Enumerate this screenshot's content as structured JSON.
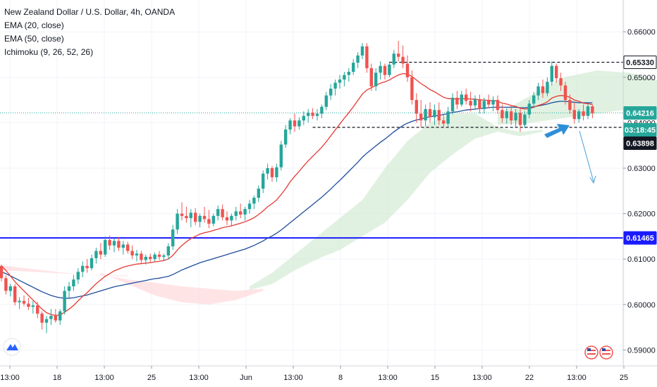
{
  "legend": {
    "symbol": "New Zealand Dollar / U.S. Dollar, 4h, OANDA",
    "ema20": "EMA (20, close)",
    "ema50": "EMA (50, close)",
    "ichimoku": "Ichimoku (9, 26, 52, 26)"
  },
  "colors": {
    "bull": "#26a69a",
    "bear": "#ef5350",
    "ema20": "#e53935",
    "ema50": "#1e4d9c",
    "support_line": "#1a1aff",
    "current_price": "#26a69a",
    "cloud_bull": "#c8e6c9",
    "cloud_bear": "#ffcdd2",
    "arrow": "#2e8fd8"
  },
  "chart_data": {
    "type": "candlestick",
    "x_ticks": [
      "13:00",
      "18",
      "13:00",
      "25",
      "13:00",
      "Jun",
      "13:00",
      "8",
      "13:00",
      "15",
      "13:00",
      "22",
      "13:00",
      "25"
    ],
    "y_ticks": [
      "0.66000",
      "0.65000",
      "0.64000",
      "0.63000",
      "0.62000",
      "0.61000",
      "0.60000",
      "0.59000"
    ],
    "ylim": [
      0.5865,
      0.667
    ],
    "price_tags": [
      {
        "label": "0.65330",
        "value": 0.6533,
        "style": "outline"
      },
      {
        "label": "0.64216",
        "value": 0.64216,
        "style": "current"
      },
      {
        "label": "03:18:45",
        "value": 0.6377,
        "style": "countdown"
      },
      {
        "label": "0.63898",
        "value": 0.63898,
        "style": "dark"
      },
      {
        "label": "0.61465",
        "value": 0.61465,
        "style": "support"
      }
    ],
    "levels": {
      "resistance": 0.6533,
      "support": 0.63898,
      "horizontal_support": 0.61465,
      "current": 0.64216
    },
    "candles": [
      [
        0.6085,
        0.6088,
        0.6051,
        0.6058
      ],
      [
        0.6058,
        0.6064,
        0.6022,
        0.603
      ],
      [
        0.603,
        0.6046,
        0.6018,
        0.604
      ],
      [
        0.604,
        0.6045,
        0.5998,
        0.6005
      ],
      [
        0.6005,
        0.6016,
        0.599,
        0.6008
      ],
      [
        0.6008,
        0.602,
        0.5997,
        0.6002
      ],
      [
        0.6002,
        0.6015,
        0.5988,
        0.5995
      ],
      [
        0.5995,
        0.6008,
        0.598,
        0.5998
      ],
      [
        0.5998,
        0.6006,
        0.597,
        0.598
      ],
      [
        0.598,
        0.5985,
        0.5945,
        0.596
      ],
      [
        0.596,
        0.5975,
        0.5937,
        0.5968
      ],
      [
        0.5968,
        0.599,
        0.5955,
        0.5975
      ],
      [
        0.5975,
        0.599,
        0.596,
        0.5965
      ],
      [
        0.5965,
        0.599,
        0.5955,
        0.5985
      ],
      [
        0.5985,
        0.604,
        0.5978,
        0.603
      ],
      [
        0.603,
        0.605,
        0.6015,
        0.604
      ],
      [
        0.604,
        0.6065,
        0.603,
        0.6055
      ],
      [
        0.6055,
        0.608,
        0.6045,
        0.6072
      ],
      [
        0.6072,
        0.6095,
        0.606,
        0.6085
      ],
      [
        0.6085,
        0.61,
        0.607,
        0.608
      ],
      [
        0.608,
        0.611,
        0.6075,
        0.6102
      ],
      [
        0.6102,
        0.6125,
        0.609,
        0.6118
      ],
      [
        0.6118,
        0.6135,
        0.61,
        0.611
      ],
      [
        0.611,
        0.615,
        0.6105,
        0.6142
      ],
      [
        0.6142,
        0.6152,
        0.612,
        0.613
      ],
      [
        0.613,
        0.6145,
        0.6115,
        0.614
      ],
      [
        0.614,
        0.6148,
        0.6118,
        0.6125
      ],
      [
        0.6125,
        0.614,
        0.611,
        0.6132
      ],
      [
        0.6132,
        0.6138,
        0.6112,
        0.6118
      ],
      [
        0.6118,
        0.613,
        0.61,
        0.6108
      ],
      [
        0.6108,
        0.612,
        0.6095,
        0.6112
      ],
      [
        0.6112,
        0.6118,
        0.609,
        0.6098
      ],
      [
        0.6098,
        0.611,
        0.6088,
        0.6105
      ],
      [
        0.6105,
        0.6112,
        0.6092,
        0.61
      ],
      [
        0.61,
        0.6115,
        0.6095,
        0.611
      ],
      [
        0.611,
        0.6118,
        0.6098,
        0.6105
      ],
      [
        0.6105,
        0.6112,
        0.6095,
        0.6108
      ],
      [
        0.6108,
        0.6135,
        0.61,
        0.6128
      ],
      [
        0.6128,
        0.6175,
        0.612,
        0.6165
      ],
      [
        0.6165,
        0.621,
        0.6155,
        0.62
      ],
      [
        0.62,
        0.6225,
        0.6185,
        0.6195
      ],
      [
        0.6195,
        0.6215,
        0.618,
        0.619
      ],
      [
        0.619,
        0.621,
        0.617,
        0.6202
      ],
      [
        0.6202,
        0.6212,
        0.6175,
        0.6182
      ],
      [
        0.6182,
        0.62,
        0.617,
        0.6195
      ],
      [
        0.6195,
        0.6215,
        0.618,
        0.6188
      ],
      [
        0.6188,
        0.6208,
        0.6168,
        0.6178
      ],
      [
        0.6178,
        0.62,
        0.6172,
        0.6195
      ],
      [
        0.6195,
        0.6218,
        0.6185,
        0.621
      ],
      [
        0.621,
        0.622,
        0.6185,
        0.6192
      ],
      [
        0.6192,
        0.6205,
        0.6175,
        0.6185
      ],
      [
        0.6185,
        0.62,
        0.6172,
        0.6195
      ],
      [
        0.6195,
        0.6215,
        0.6185,
        0.6205
      ],
      [
        0.6205,
        0.6222,
        0.619,
        0.6198
      ],
      [
        0.6198,
        0.6215,
        0.6185,
        0.621
      ],
      [
        0.621,
        0.623,
        0.62,
        0.6222
      ],
      [
        0.6222,
        0.624,
        0.621,
        0.6235
      ],
      [
        0.6235,
        0.6262,
        0.6225,
        0.6255
      ],
      [
        0.6255,
        0.6295,
        0.6245,
        0.6288
      ],
      [
        0.6288,
        0.631,
        0.6275,
        0.63
      ],
      [
        0.63,
        0.6305,
        0.627,
        0.628
      ],
      [
        0.628,
        0.631,
        0.627,
        0.6302
      ],
      [
        0.6302,
        0.636,
        0.6295,
        0.6352
      ],
      [
        0.6352,
        0.6395,
        0.6345,
        0.6385
      ],
      [
        0.6385,
        0.641,
        0.6375,
        0.6405
      ],
      [
        0.6405,
        0.642,
        0.638,
        0.6392
      ],
      [
        0.6392,
        0.6412,
        0.6385,
        0.6405
      ],
      [
        0.6405,
        0.6425,
        0.6395,
        0.6415
      ],
      [
        0.6415,
        0.643,
        0.64,
        0.6422
      ],
      [
        0.6422,
        0.6432,
        0.6408,
        0.6415
      ],
      [
        0.6415,
        0.643,
        0.6405,
        0.642
      ],
      [
        0.642,
        0.644,
        0.641,
        0.6435
      ],
      [
        0.6435,
        0.6468,
        0.6428,
        0.646
      ],
      [
        0.646,
        0.6485,
        0.645,
        0.6475
      ],
      [
        0.6475,
        0.6495,
        0.646,
        0.6488
      ],
      [
        0.6488,
        0.6505,
        0.6475,
        0.6495
      ],
      [
        0.6495,
        0.6512,
        0.648,
        0.6505
      ],
      [
        0.6505,
        0.652,
        0.649,
        0.6512
      ],
      [
        0.6512,
        0.654,
        0.6505,
        0.6532
      ],
      [
        0.6532,
        0.6555,
        0.652,
        0.6548
      ],
      [
        0.6548,
        0.6575,
        0.654,
        0.6568
      ],
      [
        0.6568,
        0.6575,
        0.651,
        0.652
      ],
      [
        0.652,
        0.653,
        0.647,
        0.648
      ],
      [
        0.648,
        0.652,
        0.647,
        0.651
      ],
      [
        0.651,
        0.6535,
        0.6495,
        0.6525
      ],
      [
        0.6525,
        0.653,
        0.6495,
        0.6505
      ],
      [
        0.6505,
        0.6535,
        0.65,
        0.6528
      ],
      [
        0.6528,
        0.656,
        0.652,
        0.6552
      ],
      [
        0.6552,
        0.658,
        0.6535,
        0.6545
      ],
      [
        0.6545,
        0.657,
        0.652,
        0.653
      ],
      [
        0.653,
        0.6548,
        0.649,
        0.65
      ],
      [
        0.65,
        0.6515,
        0.644,
        0.645
      ],
      [
        0.645,
        0.6465,
        0.64,
        0.642
      ],
      [
        0.642,
        0.645,
        0.639,
        0.6405
      ],
      [
        0.6405,
        0.644,
        0.6392,
        0.643
      ],
      [
        0.643,
        0.6445,
        0.64,
        0.6412
      ],
      [
        0.6412,
        0.644,
        0.6395,
        0.6428
      ],
      [
        0.6428,
        0.6445,
        0.6395,
        0.6405
      ],
      [
        0.6405,
        0.642,
        0.639,
        0.6398
      ],
      [
        0.6398,
        0.6435,
        0.6392,
        0.6425
      ],
      [
        0.6425,
        0.6465,
        0.6418,
        0.6455
      ],
      [
        0.6455,
        0.647,
        0.643,
        0.644
      ],
      [
        0.644,
        0.647,
        0.6435,
        0.6462
      ],
      [
        0.6462,
        0.6475,
        0.644,
        0.6448
      ],
      [
        0.6448,
        0.6468,
        0.6425,
        0.6438
      ],
      [
        0.6438,
        0.646,
        0.6428,
        0.6452
      ],
      [
        0.6452,
        0.6462,
        0.642,
        0.643
      ],
      [
        0.643,
        0.6455,
        0.642,
        0.6448
      ],
      [
        0.6448,
        0.6462,
        0.6432,
        0.644
      ],
      [
        0.644,
        0.6458,
        0.6425,
        0.645
      ],
      [
        0.645,
        0.646,
        0.642,
        0.6428
      ],
      [
        0.6428,
        0.644,
        0.64,
        0.641
      ],
      [
        0.641,
        0.6432,
        0.6398,
        0.6425
      ],
      [
        0.6425,
        0.6438,
        0.6395,
        0.6405
      ],
      [
        0.6405,
        0.643,
        0.639,
        0.6422
      ],
      [
        0.6422,
        0.6432,
        0.638,
        0.6395
      ],
      [
        0.6395,
        0.6425,
        0.6388,
        0.6418
      ],
      [
        0.6418,
        0.645,
        0.641,
        0.6442
      ],
      [
        0.6442,
        0.6468,
        0.6432,
        0.646
      ],
      [
        0.646,
        0.6488,
        0.645,
        0.648
      ],
      [
        0.648,
        0.6495,
        0.6455,
        0.6465
      ],
      [
        0.6465,
        0.65,
        0.6458,
        0.649
      ],
      [
        0.649,
        0.6535,
        0.6482,
        0.6525
      ],
      [
        0.6525,
        0.653,
        0.6488,
        0.6498
      ],
      [
        0.6498,
        0.651,
        0.647,
        0.6482
      ],
      [
        0.6482,
        0.649,
        0.644,
        0.645
      ],
      [
        0.645,
        0.6462,
        0.642,
        0.6428
      ],
      [
        0.6428,
        0.6445,
        0.6398,
        0.6408
      ],
      [
        0.6408,
        0.643,
        0.64,
        0.6425
      ],
      [
        0.6425,
        0.644,
        0.6405,
        0.6415
      ],
      [
        0.6415,
        0.6442,
        0.6408,
        0.6436
      ],
      [
        0.6436,
        0.644,
        0.641,
        0.6421
      ]
    ],
    "ema20": [
      0.6085,
      0.6075,
      0.6063,
      0.605,
      0.604,
      0.603,
      0.602,
      0.601,
      0.6,
      0.599,
      0.5982,
      0.5978,
      0.5976,
      0.5977,
      0.5983,
      0.599,
      0.5998,
      0.6008,
      0.6018,
      0.6026,
      0.6036,
      0.6046,
      0.6054,
      0.6062,
      0.6068,
      0.6074,
      0.6078,
      0.6082,
      0.6085,
      0.6087,
      0.6089,
      0.609,
      0.6091,
      0.6092,
      0.6094,
      0.6095,
      0.6097,
      0.61,
      0.6108,
      0.612,
      0.613,
      0.6138,
      0.6145,
      0.615,
      0.6155,
      0.6158,
      0.616,
      0.6163,
      0.6166,
      0.6169,
      0.6171,
      0.6173,
      0.6176,
      0.6179,
      0.6182,
      0.6186,
      0.6191,
      0.6198,
      0.6206,
      0.6215,
      0.6222,
      0.623,
      0.6242,
      0.6255,
      0.627,
      0.6282,
      0.6293,
      0.6305,
      0.6316,
      0.6326,
      0.6336,
      0.6346,
      0.6358,
      0.6371,
      0.6384,
      0.6397,
      0.641,
      0.6422,
      0.6435,
      0.6449,
      0.6463,
      0.6472,
      0.6477,
      0.6482,
      0.6487,
      0.649,
      0.6494,
      0.65,
      0.6505,
      0.6508,
      0.6507,
      0.6502,
      0.6494,
      0.6486,
      0.648,
      0.6473,
      0.6468,
      0.6462,
      0.6456,
      0.6453,
      0.6453,
      0.6452,
      0.6453,
      0.6453,
      0.6452,
      0.6452,
      0.645,
      0.645,
      0.6449,
      0.6449,
      0.6447,
      0.6443,
      0.6441,
      0.6438,
      0.6436,
      0.6432,
      0.643,
      0.6431,
      0.6434,
      0.6438,
      0.6441,
      0.6446,
      0.6454,
      0.6458,
      0.646,
      0.6459,
      0.6456,
      0.645,
      0.6447,
      0.6443,
      0.6442,
      0.644
    ],
    "ema50": [
      0.6072,
      0.6068,
      0.6063,
      0.6058,
      0.6053,
      0.6048,
      0.6043,
      0.6038,
      0.6033,
      0.6028,
      0.6024,
      0.602,
      0.6017,
      0.6015,
      0.6014,
      0.6014,
      0.6015,
      0.6017,
      0.6019,
      0.6021,
      0.6024,
      0.6027,
      0.603,
      0.6033,
      0.6036,
      0.6039,
      0.6041,
      0.6043,
      0.6045,
      0.6047,
      0.6049,
      0.6051,
      0.6053,
      0.6055,
      0.6057,
      0.6058,
      0.606,
      0.6062,
      0.6066,
      0.6071,
      0.6076,
      0.608,
      0.6084,
      0.6088,
      0.6092,
      0.6095,
      0.6098,
      0.6101,
      0.6104,
      0.6107,
      0.611,
      0.6113,
      0.6116,
      0.6119,
      0.6122,
      0.6126,
      0.613,
      0.6135,
      0.614,
      0.6146,
      0.6151,
      0.6157,
      0.6164,
      0.6172,
      0.618,
      0.6188,
      0.6196,
      0.6204,
      0.6212,
      0.622,
      0.6228,
      0.6236,
      0.6245,
      0.6254,
      0.6264,
      0.6273,
      0.6283,
      0.6293,
      0.6303,
      0.6313,
      0.6324,
      0.6333,
      0.6341,
      0.6349,
      0.6357,
      0.6364,
      0.6372,
      0.638,
      0.6387,
      0.6394,
      0.6399,
      0.6403,
      0.6406,
      0.6408,
      0.6411,
      0.6413,
      0.6415,
      0.6416,
      0.6418,
      0.642,
      0.6423,
      0.6424,
      0.6426,
      0.6428,
      0.6429,
      0.643,
      0.6431,
      0.6432,
      0.6433,
      0.6434,
      0.6434,
      0.6434,
      0.6434,
      0.6434,
      0.6434,
      0.6433,
      0.6433,
      0.6434,
      0.6435,
      0.6437,
      0.6439,
      0.6441,
      0.6444,
      0.6446,
      0.6447,
      0.6447,
      0.6446,
      0.6445,
      0.6444,
      0.6444,
      0.6444,
      0.6444
    ],
    "cloud": [
      {
        "x": [
          0,
          28
        ],
        "a": [
          0.6086,
          0.6078,
          0.607,
          0.6065,
          0.6062
        ],
        "b": [
          0.6075,
          0.6072,
          0.6068,
          0.6066,
          0.6064
        ],
        "kind": "bear"
      },
      {
        "x": [
          22,
          58
        ],
        "a": [
          0.607,
          0.6045,
          0.602,
          0.6005,
          0.6,
          0.601,
          0.603
        ],
        "b": [
          0.6065,
          0.6055,
          0.6048,
          0.604,
          0.6035,
          0.603,
          0.6035
        ],
        "kind": "bear"
      },
      {
        "x": [
          55,
          120
        ],
        "a": [
          0.604,
          0.607,
          0.611,
          0.615,
          0.619,
          0.623,
          0.63,
          0.636,
          0.64,
          0.642,
          0.642,
          0.639,
          0.638,
          0.6385
        ],
        "b": [
          0.6032,
          0.6045,
          0.6075,
          0.61,
          0.612,
          0.615,
          0.618,
          0.623,
          0.629,
          0.633,
          0.6365,
          0.638,
          0.637,
          0.638
        ],
        "kind": "bull"
      },
      {
        "x": [
          110,
          176
        ],
        "a": [
          0.642,
          0.646,
          0.65,
          0.6515,
          0.651,
          0.649,
          0.647,
          0.6455,
          0.645,
          0.6442
        ],
        "b": [
          0.6395,
          0.64,
          0.641,
          0.642,
          0.643,
          0.6438,
          0.644,
          0.644,
          0.6438,
          0.6435
        ],
        "kind": "bull"
      },
      {
        "x": [
          166,
          210
        ],
        "a": [
          0.644,
          0.6445,
          0.6448,
          0.645,
          0.6452,
          0.645
        ],
        "b": [
          0.647,
          0.648,
          0.6485,
          0.6485,
          0.6482,
          0.648
        ],
        "kind": "bear"
      }
    ]
  }
}
